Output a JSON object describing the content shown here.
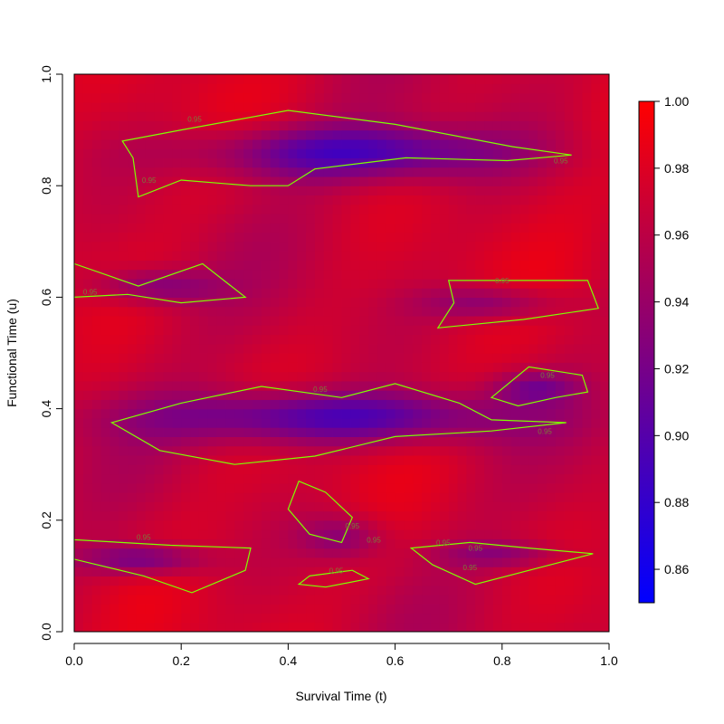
{
  "chart_data": {
    "type": "heatmap",
    "title": "",
    "xlabel": "Survival Time (t)",
    "ylabel": "Functional Time (u)",
    "xlim": [
      0,
      1
    ],
    "ylim": [
      0,
      1
    ],
    "x_ticks": [
      "0.0",
      "0.2",
      "0.4",
      "0.6",
      "0.8",
      "1.0"
    ],
    "y_ticks": [
      "0.0",
      "0.2",
      "0.4",
      "0.6",
      "0.8",
      "1.0"
    ],
    "grid": false,
    "colorscale": {
      "low_color": "#0000ff",
      "high_color": "#ff0000",
      "range": [
        0.85,
        1.0
      ],
      "ticks": [
        "0.86",
        "0.88",
        "0.90",
        "0.92",
        "0.94",
        "0.96",
        "0.98",
        "1.00"
      ],
      "placement": "right"
    },
    "contour_level": 0.95,
    "contour_color": "#7fff00",
    "contour_label": "0.95",
    "background_value": 0.97,
    "low_regions": [
      {
        "name": "upper band",
        "cx": 0.52,
        "cy": 0.86,
        "rx": 0.36,
        "ry": 0.06,
        "min": 0.895
      },
      {
        "name": "middle band",
        "cx": 0.48,
        "cy": 0.385,
        "rx": 0.41,
        "ry": 0.06,
        "min": 0.89
      },
      {
        "name": "left mid patch",
        "cx": 0.15,
        "cy": 0.62,
        "rx": 0.14,
        "ry": 0.04,
        "min": 0.925
      },
      {
        "name": "right mid patch",
        "cx": 0.78,
        "cy": 0.59,
        "rx": 0.16,
        "ry": 0.04,
        "min": 0.925
      },
      {
        "name": "right lower-mid patch",
        "cx": 0.86,
        "cy": 0.44,
        "rx": 0.1,
        "ry": 0.035,
        "min": 0.93
      },
      {
        "name": "lower left patch",
        "cx": 0.13,
        "cy": 0.13,
        "rx": 0.14,
        "ry": 0.035,
        "min": 0.915
      },
      {
        "name": "lower centre patch",
        "cx": 0.5,
        "cy": 0.17,
        "rx": 0.1,
        "ry": 0.05,
        "min": 0.93
      },
      {
        "name": "lower right patch",
        "cx": 0.8,
        "cy": 0.14,
        "rx": 0.14,
        "ry": 0.03,
        "min": 0.935
      }
    ],
    "contours": [
      [
        [
          0.09,
          0.88
        ],
        [
          0.2,
          0.9
        ],
        [
          0.4,
          0.935
        ],
        [
          0.6,
          0.91
        ],
        [
          0.82,
          0.87
        ],
        [
          0.93,
          0.855
        ],
        [
          0.81,
          0.845
        ],
        [
          0.62,
          0.85
        ],
        [
          0.45,
          0.83
        ],
        [
          0.4,
          0.8
        ],
        [
          0.33,
          0.8
        ],
        [
          0.2,
          0.81
        ],
        [
          0.12,
          0.78
        ],
        [
          0.11,
          0.85
        ]
      ],
      [
        [
          0.0,
          0.66
        ],
        [
          0.12,
          0.62
        ],
        [
          0.24,
          0.66
        ],
        [
          0.32,
          0.6
        ],
        [
          0.2,
          0.59
        ],
        [
          0.1,
          0.605
        ],
        [
          0.0,
          0.6
        ]
      ],
      [
        [
          0.7,
          0.63
        ],
        [
          0.96,
          0.63
        ],
        [
          0.98,
          0.58
        ],
        [
          0.84,
          0.56
        ],
        [
          0.68,
          0.545
        ],
        [
          0.71,
          0.59
        ]
      ],
      [
        [
          0.07,
          0.375
        ],
        [
          0.2,
          0.41
        ],
        [
          0.35,
          0.44
        ],
        [
          0.5,
          0.42
        ],
        [
          0.6,
          0.445
        ],
        [
          0.72,
          0.41
        ],
        [
          0.78,
          0.38
        ],
        [
          0.92,
          0.375
        ],
        [
          0.78,
          0.36
        ],
        [
          0.6,
          0.35
        ],
        [
          0.45,
          0.315
        ],
        [
          0.3,
          0.3
        ],
        [
          0.16,
          0.325
        ]
      ],
      [
        [
          0.78,
          0.42
        ],
        [
          0.85,
          0.475
        ],
        [
          0.95,
          0.46
        ],
        [
          0.96,
          0.43
        ],
        [
          0.9,
          0.42
        ],
        [
          0.83,
          0.405
        ]
      ],
      [
        [
          0.0,
          0.165
        ],
        [
          0.18,
          0.155
        ],
        [
          0.33,
          0.15
        ],
        [
          0.32,
          0.11
        ],
        [
          0.22,
          0.07
        ],
        [
          0.13,
          0.1
        ],
        [
          0.0,
          0.13
        ]
      ],
      [
        [
          0.42,
          0.27
        ],
        [
          0.47,
          0.25
        ],
        [
          0.52,
          0.205
        ],
        [
          0.5,
          0.16
        ],
        [
          0.44,
          0.175
        ],
        [
          0.4,
          0.22
        ]
      ],
      [
        [
          0.63,
          0.15
        ],
        [
          0.74,
          0.16
        ],
        [
          0.85,
          0.15
        ],
        [
          0.97,
          0.14
        ],
        [
          0.87,
          0.115
        ],
        [
          0.75,
          0.085
        ],
        [
          0.67,
          0.12
        ]
      ],
      [
        [
          0.44,
          0.1
        ],
        [
          0.52,
          0.11
        ],
        [
          0.55,
          0.095
        ],
        [
          0.47,
          0.08
        ],
        [
          0.42,
          0.085
        ]
      ]
    ],
    "contour_label_positions": [
      [
        0.225,
        0.915
      ],
      [
        0.14,
        0.805
      ],
      [
        0.91,
        0.84
      ],
      [
        0.03,
        0.605
      ],
      [
        0.8,
        0.625
      ],
      [
        0.885,
        0.455
      ],
      [
        0.88,
        0.355
      ],
      [
        0.46,
        0.43
      ],
      [
        0.13,
        0.165
      ],
      [
        0.52,
        0.185
      ],
      [
        0.56,
        0.16
      ],
      [
        0.69,
        0.155
      ],
      [
        0.75,
        0.145
      ],
      [
        0.74,
        0.11
      ],
      [
        0.49,
        0.105
      ]
    ]
  }
}
